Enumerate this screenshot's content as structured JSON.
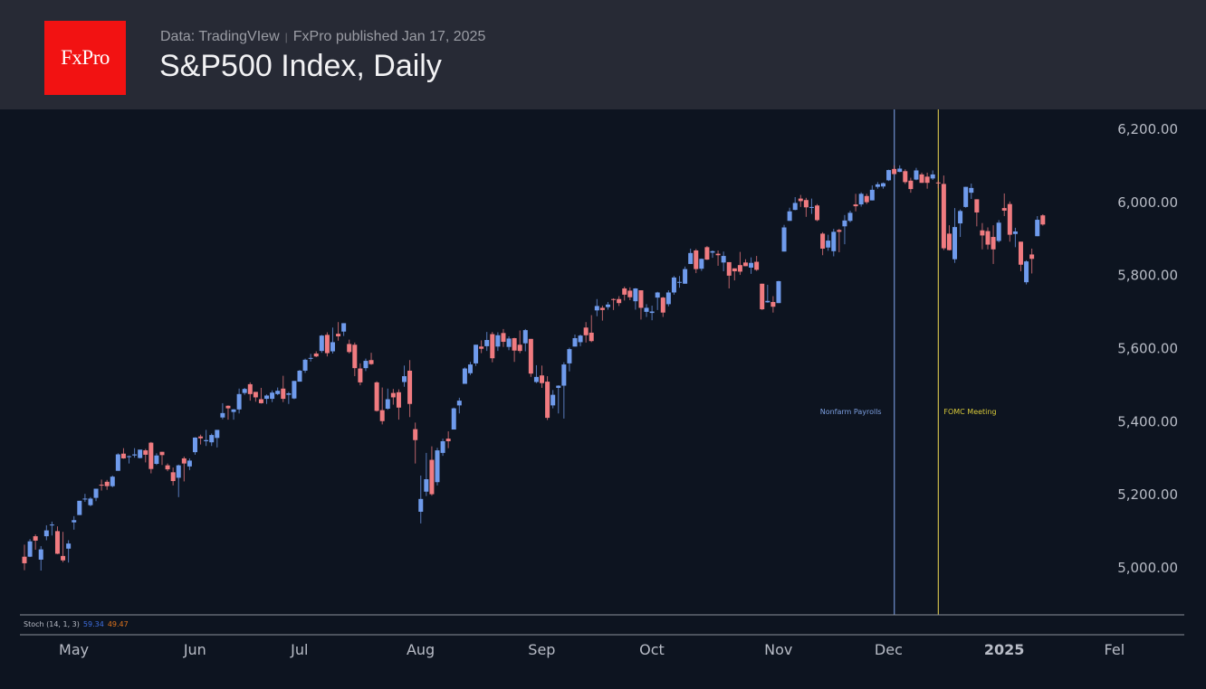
{
  "header": {
    "logo": "FxPro",
    "source": "Data: TradingVIew",
    "published": "FxPro published Jan 17, 2025",
    "title": "S&P500 Index, Daily"
  },
  "colors": {
    "up": "#6f9bec",
    "down": "#f07b80",
    "nonfarm_line": "#6f8fcf",
    "fomc_line": "#c9b84a",
    "fomc_text": "#d8c93a",
    "stoch_k": "#3f6fe0",
    "stoch_d": "#e0741c"
  },
  "indicator": {
    "label": "Stoch (14, 1, 3)",
    "k": "59.34",
    "d": "49.47"
  },
  "chart_data": {
    "type": "candlestick",
    "title": "S&P500 Index, Daily",
    "ylim": [
      4870,
      6240
    ],
    "y_ticks": [
      {
        "value": 6200,
        "label": "6,200.00"
      },
      {
        "value": 6000,
        "label": "6,000.00"
      },
      {
        "value": 5800,
        "label": "5,800.00"
      },
      {
        "value": 5600,
        "label": "5,600.00"
      },
      {
        "value": 5400,
        "label": "5,400.00"
      },
      {
        "value": 5200,
        "label": "5,200.00"
      },
      {
        "value": 5000,
        "label": "5,000.00"
      }
    ],
    "x_ticks": [
      {
        "date": "2024-05-01",
        "label": "May"
      },
      {
        "date": "2024-06-03",
        "label": "Jun"
      },
      {
        "date": "2024-07-01",
        "label": "Jul"
      },
      {
        "date": "2024-08-01",
        "label": "Aug"
      },
      {
        "date": "2024-09-03",
        "label": "Sep"
      },
      {
        "date": "2024-10-01",
        "label": "Oct"
      },
      {
        "date": "2024-11-01",
        "label": "Nov"
      },
      {
        "date": "2024-12-02",
        "label": "Dec"
      },
      {
        "date": "2025-01-02",
        "label": "2025",
        "bold": true
      },
      {
        "date": "2025-02-03",
        "label": "Fel",
        "future_index": 198
      }
    ],
    "annotations": [
      {
        "date": "2024-12-06",
        "label": "Nonfarm Payrolls",
        "color_key": "nonfarm_line"
      },
      {
        "date": "2024-12-18",
        "label": "FOMC Meeting",
        "color_key": "fomc_line"
      }
    ],
    "columns": [
      "date",
      "open",
      "high",
      "low",
      "close"
    ],
    "candles": [
      [
        "2024-04-22",
        5028,
        5061,
        4991,
        5010
      ],
      [
        "2024-04-23",
        5028,
        5076,
        5027,
        5070
      ],
      [
        "2024-04-24",
        5084,
        5089,
        5047,
        5072
      ],
      [
        "2024-04-25",
        5020,
        5057,
        4990,
        5048
      ],
      [
        "2024-04-26",
        5084,
        5114,
        5073,
        5100
      ],
      [
        "2024-04-29",
        5114,
        5124,
        5086,
        5116
      ],
      [
        "2024-04-30",
        5098,
        5111,
        5035,
        5036
      ],
      [
        "2024-05-01",
        5030,
        5096,
        5013,
        5018
      ],
      [
        "2024-05-02",
        5050,
        5073,
        5012,
        5064
      ],
      [
        "2024-05-03",
        5122,
        5139,
        5102,
        5128
      ],
      [
        "2024-05-06",
        5142,
        5181,
        5142,
        5181
      ],
      [
        "2024-05-07",
        5187,
        5200,
        5178,
        5187
      ],
      [
        "2024-05-08",
        5169,
        5191,
        5166,
        5187
      ],
      [
        "2024-05-09",
        5189,
        5214,
        5180,
        5214
      ],
      [
        "2024-05-10",
        5225,
        5239,
        5209,
        5223
      ],
      [
        "2024-05-13",
        5233,
        5238,
        5211,
        5221
      ],
      [
        "2024-05-14",
        5221,
        5250,
        5218,
        5247
      ],
      [
        "2024-05-15",
        5263,
        5311,
        5263,
        5308
      ],
      [
        "2024-05-16",
        5310,
        5325,
        5296,
        5297
      ],
      [
        "2024-05-17",
        5303,
        5305,
        5283,
        5303
      ],
      [
        "2024-05-20",
        5305,
        5325,
        5299,
        5308
      ],
      [
        "2024-05-21",
        5298,
        5315,
        5297,
        5321
      ],
      [
        "2024-05-22",
        5319,
        5323,
        5286,
        5307
      ],
      [
        "2024-05-23",
        5340,
        5342,
        5256,
        5268
      ],
      [
        "2024-05-24",
        5282,
        5311,
        5279,
        5305
      ],
      [
        "2024-05-28",
        5315,
        5315,
        5279,
        5306
      ],
      [
        "2024-05-29",
        5278,
        5283,
        5262,
        5267
      ],
      [
        "2024-05-30",
        5259,
        5272,
        5223,
        5235
      ],
      [
        "2024-05-31",
        5244,
        5280,
        5191,
        5278
      ],
      [
        "2024-06-03",
        5297,
        5302,
        5234,
        5283
      ],
      [
        "2024-06-04",
        5275,
        5297,
        5265,
        5291
      ],
      [
        "2024-06-05",
        5314,
        5355,
        5307,
        5354
      ],
      [
        "2024-06-06",
        5357,
        5362,
        5335,
        5352
      ],
      [
        "2024-06-07",
        5344,
        5375,
        5331,
        5347
      ],
      [
        "2024-06-10",
        5341,
        5365,
        5331,
        5361
      ],
      [
        "2024-06-11",
        5353,
        5375,
        5327,
        5375
      ],
      [
        "2024-06-12",
        5409,
        5448,
        5404,
        5421
      ],
      [
        "2024-06-13",
        5441,
        5442,
        5403,
        5434
      ],
      [
        "2024-06-14",
        5424,
        5432,
        5403,
        5431
      ],
      [
        "2024-06-17",
        5431,
        5488,
        5420,
        5473
      ],
      [
        "2024-06-18",
        5476,
        5490,
        5471,
        5487
      ],
      [
        "2024-06-20",
        5500,
        5505,
        5455,
        5473
      ],
      [
        "2024-06-21",
        5479,
        5478,
        5452,
        5464
      ],
      [
        "2024-06-24",
        5459,
        5490,
        5447,
        5448
      ],
      [
        "2024-06-25",
        5460,
        5472,
        5446,
        5469
      ],
      [
        "2024-06-26",
        5460,
        5483,
        5451,
        5477
      ],
      [
        "2024-06-27",
        5473,
        5491,
        5470,
        5482
      ],
      [
        "2024-06-28",
        5488,
        5523,
        5451,
        5460
      ],
      [
        "2024-07-01",
        5471,
        5479,
        5446,
        5475
      ],
      [
        "2024-07-02",
        5461,
        5509,
        5459,
        5509
      ],
      [
        "2024-07-03",
        5507,
        5539,
        5507,
        5537
      ],
      [
        "2024-07-05",
        5537,
        5570,
        5531,
        5567
      ],
      [
        "2024-07-08",
        5572,
        5583,
        5562,
        5572
      ],
      [
        "2024-07-09",
        5584,
        5590,
        5574,
        5576
      ],
      [
        "2024-07-10",
        5591,
        5635,
        5586,
        5633
      ],
      [
        "2024-07-11",
        5635,
        5642,
        5576,
        5585
      ],
      [
        "2024-07-12",
        5590,
        5655,
        5584,
        5615
      ],
      [
        "2024-07-15",
        5638,
        5670,
        5619,
        5631
      ],
      [
        "2024-07-16",
        5644,
        5667,
        5632,
        5667
      ],
      [
        "2024-07-17",
        5610,
        5622,
        5584,
        5588
      ],
      [
        "2024-07-18",
        5608,
        5614,
        5522,
        5544
      ],
      [
        "2024-07-19",
        5543,
        5557,
        5497,
        5505
      ],
      [
        "2024-07-22",
        5544,
        5570,
        5536,
        5564
      ],
      [
        "2024-07-23",
        5566,
        5586,
        5553,
        5555
      ],
      [
        "2024-07-24",
        5505,
        5508,
        5425,
        5427
      ],
      [
        "2024-07-25",
        5429,
        5491,
        5390,
        5399
      ],
      [
        "2024-07-26",
        5433,
        5488,
        5430,
        5459
      ],
      [
        "2024-07-29",
        5476,
        5487,
        5444,
        5464
      ],
      [
        "2024-07-30",
        5478,
        5486,
        5403,
        5436
      ],
      [
        "2024-07-31",
        5506,
        5551,
        5493,
        5522
      ],
      [
        "2024-08-01",
        5537,
        5566,
        5410,
        5446
      ],
      [
        "2024-08-02",
        5377,
        5395,
        5283,
        5347
      ],
      [
        "2024-08-05",
        5151,
        5250,
        5119,
        5186
      ],
      [
        "2024-08-06",
        5206,
        5312,
        5194,
        5240
      ],
      [
        "2024-08-07",
        5293,
        5330,
        5195,
        5199
      ],
      [
        "2024-08-08",
        5232,
        5326,
        5223,
        5319
      ],
      [
        "2024-08-09",
        5312,
        5351,
        5304,
        5344
      ],
      [
        "2024-08-12",
        5351,
        5371,
        5325,
        5344
      ],
      [
        "2024-08-13",
        5376,
        5436,
        5376,
        5434
      ],
      [
        "2024-08-14",
        5442,
        5463,
        5420,
        5455
      ],
      [
        "2024-08-15",
        5501,
        5546,
        5501,
        5543
      ],
      [
        "2024-08-16",
        5530,
        5561,
        5525,
        5554
      ],
      [
        "2024-08-19",
        5557,
        5608,
        5550,
        5608
      ],
      [
        "2024-08-20",
        5603,
        5620,
        5585,
        5597
      ],
      [
        "2024-08-21",
        5604,
        5643,
        5591,
        5621
      ],
      [
        "2024-08-22",
        5637,
        5643,
        5560,
        5571
      ],
      [
        "2024-08-23",
        5603,
        5642,
        5591,
        5634
      ],
      [
        "2024-08-26",
        5640,
        5651,
        5602,
        5616
      ],
      [
        "2024-08-27",
        5602,
        5631,
        5593,
        5625
      ],
      [
        "2024-08-28",
        5626,
        5627,
        5561,
        5592
      ],
      [
        "2024-08-29",
        5608,
        5647,
        5585,
        5591
      ],
      [
        "2024-08-30",
        5612,
        5651,
        5590,
        5648
      ],
      [
        "2024-09-03",
        5624,
        5624,
        5520,
        5529
      ],
      [
        "2024-09-04",
        5506,
        5552,
        5503,
        5520
      ],
      [
        "2024-09-05",
        5524,
        5551,
        5490,
        5503
      ],
      [
        "2024-09-06",
        5507,
        5522,
        5402,
        5408
      ],
      [
        "2024-09-09",
        5442,
        5484,
        5434,
        5471
      ],
      [
        "2024-09-10",
        5490,
        5497,
        5420,
        5496
      ],
      [
        "2024-09-11",
        5496,
        5560,
        5406,
        5554
      ],
      [
        "2024-09-12",
        5557,
        5600,
        5535,
        5596
      ],
      [
        "2024-09-13",
        5603,
        5636,
        5603,
        5626
      ],
      [
        "2024-09-16",
        5615,
        5636,
        5604,
        5633
      ],
      [
        "2024-09-17",
        5655,
        5670,
        5614,
        5634
      ],
      [
        "2024-09-18",
        5641,
        5689,
        5615,
        5618
      ],
      [
        "2024-09-19",
        5702,
        5733,
        5686,
        5714
      ],
      [
        "2024-09-20",
        5709,
        5715,
        5674,
        5703
      ],
      [
        "2024-09-23",
        5711,
        5725,
        5704,
        5718
      ],
      [
        "2024-09-24",
        5733,
        5735,
        5703,
        5732
      ],
      [
        "2024-09-25",
        5733,
        5741,
        5714,
        5722
      ],
      [
        "2024-09-26",
        5762,
        5767,
        5729,
        5745
      ],
      [
        "2024-09-27",
        5756,
        5765,
        5730,
        5738
      ],
      [
        "2024-09-30",
        5727,
        5763,
        5704,
        5762
      ],
      [
        "2024-10-01",
        5757,
        5757,
        5677,
        5709
      ],
      [
        "2024-10-02",
        5698,
        5719,
        5684,
        5709
      ],
      [
        "2024-10-03",
        5695,
        5715,
        5675,
        5699
      ],
      [
        "2024-10-04",
        5737,
        5753,
        5703,
        5751
      ],
      [
        "2024-10-07",
        5737,
        5739,
        5684,
        5696
      ],
      [
        "2024-10-08",
        5719,
        5757,
        5713,
        5751
      ],
      [
        "2024-10-09",
        5751,
        5796,
        5745,
        5792
      ],
      [
        "2024-10-10",
        5778,
        5796,
        5764,
        5780
      ],
      [
        "2024-10-11",
        5775,
        5822,
        5775,
        5815
      ],
      [
        "2024-10-14",
        5829,
        5871,
        5829,
        5859
      ],
      [
        "2024-10-15",
        5866,
        5870,
        5804,
        5815
      ],
      [
        "2024-10-16",
        5816,
        5844,
        5810,
        5843
      ],
      [
        "2024-10-17",
        5875,
        5878,
        5840,
        5841
      ],
      [
        "2024-10-18",
        5860,
        5866,
        5846,
        5864
      ],
      [
        "2024-10-21",
        5857,
        5866,
        5824,
        5853
      ],
      [
        "2024-10-22",
        5833,
        5863,
        5809,
        5851
      ],
      [
        "2024-10-23",
        5834,
        5834,
        5762,
        5797
      ],
      [
        "2024-10-24",
        5817,
        5817,
        5784,
        5809
      ],
      [
        "2024-10-25",
        5826,
        5862,
        5799,
        5808
      ],
      [
        "2024-10-28",
        5833,
        5842,
        5823,
        5823
      ],
      [
        "2024-10-29",
        5819,
        5847,
        5802,
        5832
      ],
      [
        "2024-10-30",
        5835,
        5851,
        5810,
        5813
      ],
      [
        "2024-10-31",
        5775,
        5775,
        5703,
        5705
      ],
      [
        "2024-11-01",
        5724,
        5772,
        5723,
        5728
      ],
      [
        "2024-11-04",
        5725,
        5741,
        5696,
        5712
      ],
      [
        "2024-11-05",
        5722,
        5783,
        5722,
        5782
      ],
      [
        "2024-11-06",
        5863,
        5936,
        5863,
        5929
      ],
      [
        "2024-11-07",
        5947,
        5983,
        5947,
        5973
      ],
      [
        "2024-11-08",
        5977,
        6012,
        5976,
        5996
      ],
      [
        "2024-11-11",
        6008,
        6018,
        5985,
        6001
      ],
      [
        "2024-11-12",
        6004,
        6010,
        5958,
        5984
      ],
      [
        "2024-11-13",
        5985,
        6008,
        5966,
        5985
      ],
      [
        "2024-11-14",
        5989,
        5993,
        5946,
        5949
      ],
      [
        "2024-11-15",
        5912,
        5916,
        5853,
        5871
      ],
      [
        "2024-11-18",
        5874,
        5909,
        5865,
        5893
      ],
      [
        "2024-11-19",
        5864,
        5925,
        5850,
        5917
      ],
      [
        "2024-11-20",
        5922,
        5925,
        5861,
        5917
      ],
      [
        "2024-11-21",
        5932,
        5963,
        5883,
        5948
      ],
      [
        "2024-11-22",
        5947,
        5975,
        5943,
        5969
      ],
      [
        "2024-11-25",
        5992,
        6021,
        5973,
        5987
      ],
      [
        "2024-11-26",
        5992,
        6025,
        5986,
        6021
      ],
      [
        "2024-11-27",
        6015,
        6021,
        5993,
        5998
      ],
      [
        "2024-11-29",
        6003,
        6044,
        6003,
        6032
      ],
      [
        "2024-12-02",
        6040,
        6053,
        6035,
        6047
      ],
      [
        "2024-12-03",
        6041,
        6052,
        6035,
        6050
      ],
      [
        "2024-12-04",
        6058,
        6087,
        6056,
        6086
      ],
      [
        "2024-12-05",
        6089,
        6099,
        6075,
        6075
      ],
      [
        "2024-12-06",
        6081,
        6099,
        6080,
        6090
      ],
      [
        "2024-12-09",
        6083,
        6088,
        6048,
        6053
      ],
      [
        "2024-12-10",
        6057,
        6065,
        6024,
        6034
      ],
      [
        "2024-12-11",
        6060,
        6092,
        6058,
        6085
      ],
      [
        "2024-12-12",
        6074,
        6079,
        6051,
        6051
      ],
      [
        "2024-12-13",
        6068,
        6079,
        6035,
        6051
      ],
      [
        "2024-12-16",
        6063,
        6085,
        6059,
        6074
      ],
      [
        "2024-12-17",
        6052,
        6057,
        6036,
        6050
      ],
      [
        "2024-12-18",
        6048,
        6071,
        5867,
        5872
      ],
      [
        "2024-12-19",
        5912,
        5935,
        5866,
        5867
      ],
      [
        "2024-12-20",
        5842,
        5982,
        5832,
        5930
      ],
      [
        "2024-12-23",
        5940,
        5978,
        5903,
        5974
      ],
      [
        "2024-12-24",
        5985,
        6040,
        5983,
        6040
      ],
      [
        "2024-12-26",
        6024,
        6049,
        6007,
        6037
      ],
      [
        "2024-12-27",
        6006,
        6006,
        5932,
        5970
      ],
      [
        "2024-12-30",
        5921,
        5941,
        5869,
        5907
      ],
      [
        "2024-12-31",
        5919,
        5929,
        5869,
        5882
      ],
      [
        "2025-01-02",
        5903,
        5935,
        5829,
        5869
      ],
      [
        "2025-01-03",
        5892,
        5949,
        5888,
        5942
      ],
      [
        "2025-01-06",
        5982,
        6022,
        5960,
        5975
      ],
      [
        "2025-01-07",
        5993,
        6000,
        5890,
        5909
      ],
      [
        "2025-01-08",
        5911,
        5928,
        5875,
        5918
      ],
      [
        "2025-01-10",
        5890,
        5890,
        5809,
        5827
      ],
      [
        "2025-01-13",
        5779,
        5839,
        5773,
        5836
      ],
      [
        "2025-01-14",
        5855,
        5871,
        5803,
        5843
      ],
      [
        "2025-01-15",
        5905,
        5960,
        5905,
        5950
      ],
      [
        "2025-01-16",
        5962,
        5965,
        5934,
        5937
      ]
    ]
  }
}
